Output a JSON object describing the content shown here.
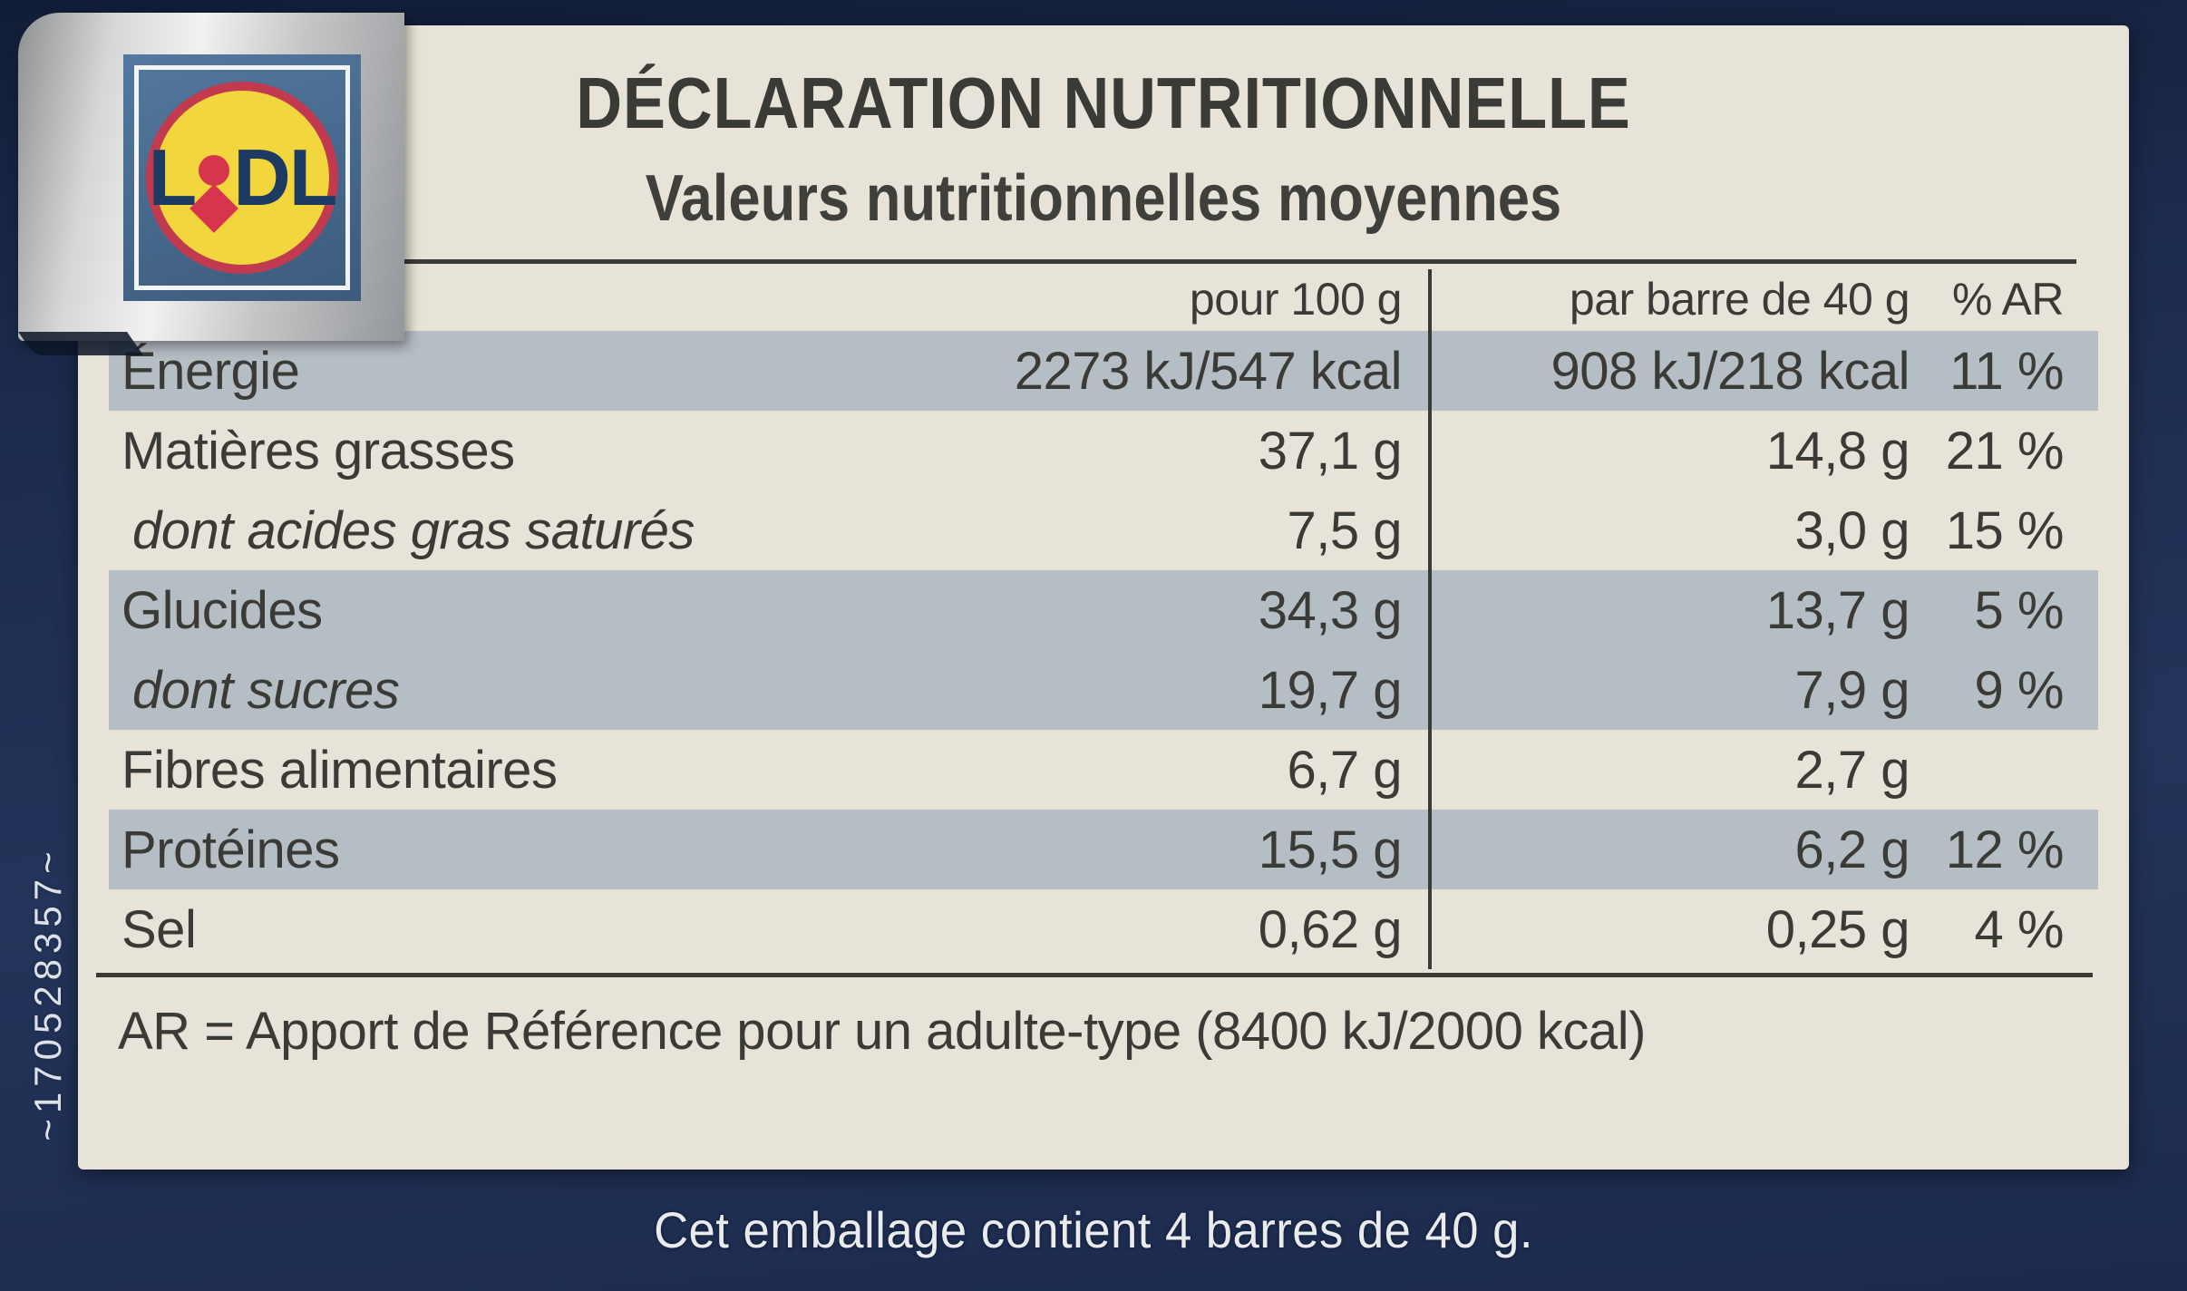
{
  "side_code": "~170528357~",
  "logo": {
    "brand": "Lidl",
    "left": "L",
    "right": "DL"
  },
  "label": {
    "title": "DÉCLARATION NUTRITIONNELLE",
    "subtitle": "Valeurs nutritionnelles moyennes",
    "footnote": "AR = Apport de Référence pour un adulte-type (8400 kJ/2000 kcal)"
  },
  "table": {
    "headers": {
      "name": "",
      "per100": "pour 100 g",
      "perBar": "par barre de 40 g",
      "ar": "% AR"
    },
    "rows": [
      {
        "name": "Énergie",
        "per100": "2273 kJ/547 kcal",
        "perBar": "908 kJ/218 kcal",
        "ar": "11 %",
        "shaded": true,
        "italic": false
      },
      {
        "name": "Matières grasses",
        "per100": "37,1 g",
        "perBar": "14,8 g",
        "ar": "21 %",
        "shaded": false,
        "italic": false
      },
      {
        "name": "dont acides gras saturés",
        "per100": "7,5 g",
        "perBar": "3,0 g",
        "ar": "15 %",
        "shaded": false,
        "italic": true
      },
      {
        "name": "Glucides",
        "per100": "34,3 g",
        "perBar": "13,7 g",
        "ar": "5 %",
        "shaded": true,
        "italic": false
      },
      {
        "name": "dont sucres",
        "per100": "19,7 g",
        "perBar": "7,9 g",
        "ar": "9 %",
        "shaded": true,
        "italic": true
      },
      {
        "name": "Fibres alimentaires",
        "per100": "6,7 g",
        "perBar": "2,7 g",
        "ar": "",
        "shaded": false,
        "italic": false
      },
      {
        "name": "Protéines",
        "per100": "15,5 g",
        "perBar": "6,2 g",
        "ar": "12 %",
        "shaded": true,
        "italic": false
      },
      {
        "name": "Sel",
        "per100": "0,62 g",
        "perBar": "0,25 g",
        "ar": "4 %",
        "shaded": false,
        "italic": false
      }
    ]
  },
  "package_note": "Cet emballage contient 4 barres de 40 g.",
  "colors": {
    "background_navy": "#1c2b4e",
    "label_cream": "#e7e3d8",
    "row_shade": "#b6bec5",
    "text": "#3a3a36",
    "lidl_blue": "#46688c",
    "lidl_yellow": "#f1d63e",
    "lidl_red": "#d7344e",
    "lidl_navy_text": "#1d3a63"
  }
}
